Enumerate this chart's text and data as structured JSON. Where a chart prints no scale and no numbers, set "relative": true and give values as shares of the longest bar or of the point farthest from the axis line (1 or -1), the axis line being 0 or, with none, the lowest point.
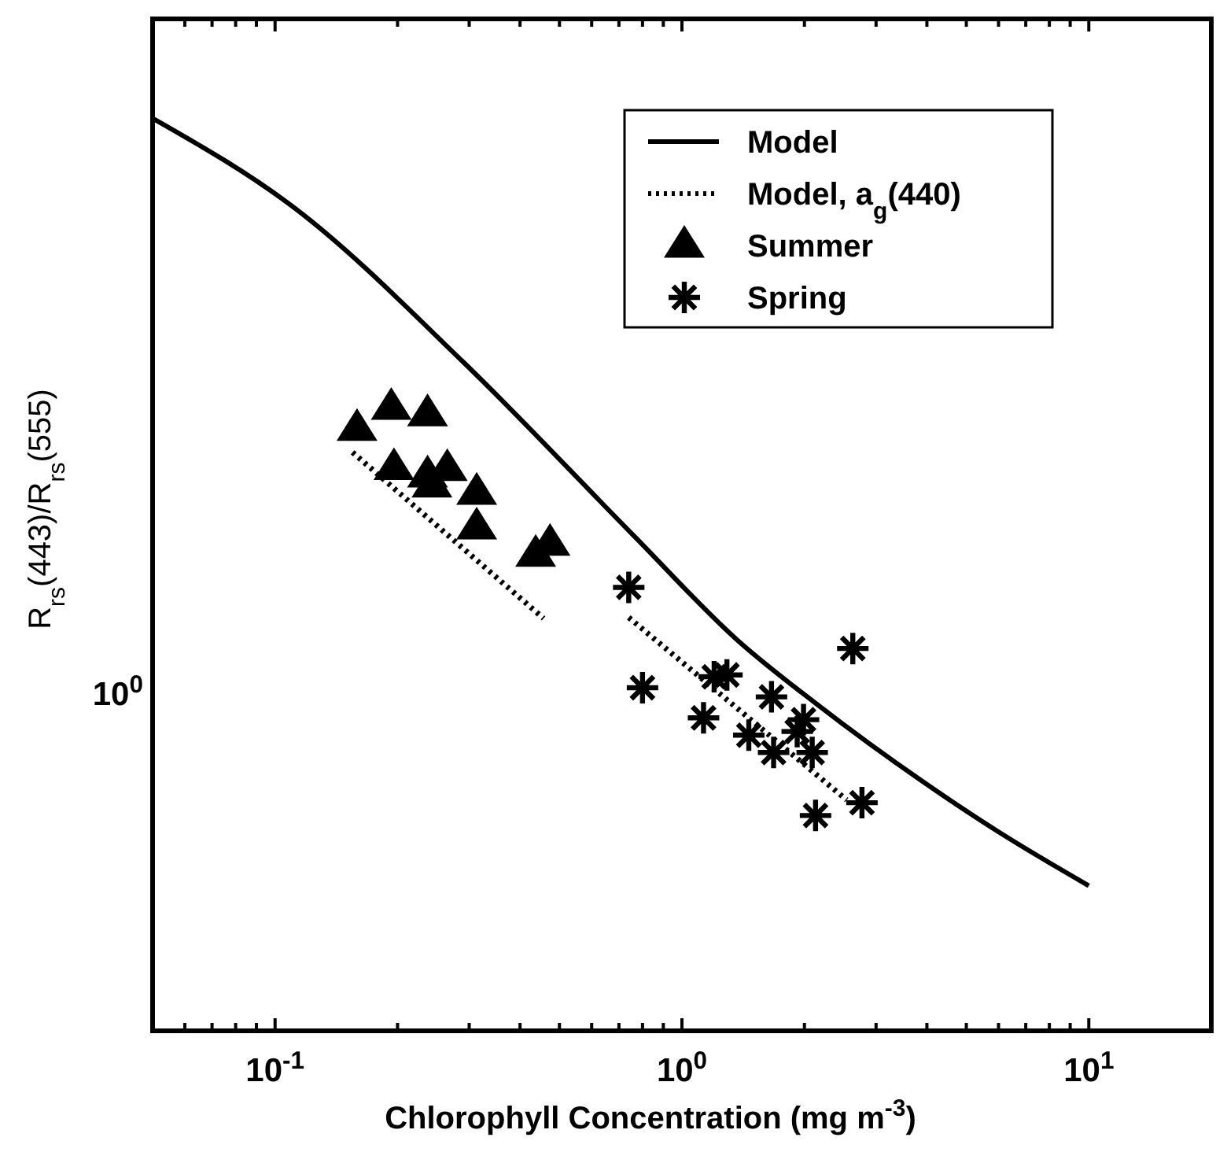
{
  "chart_data": {
    "type": "line",
    "relative": true,
    "log": "x",
    "xlabel": "Chlorophyll Concentration (mg m$^{-3}$)",
    "ylabel": "R$_{rs}$(443)/R$_{rs}$(555)",
    "xlim": [
      0.05,
      20
    ],
    "xticks": [
      {
        "value": 0.06,
        "label": null
      },
      {
        "value": 0.07,
        "label": null
      },
      {
        "value": 0.08,
        "label": null
      },
      {
        "value": 0.09,
        "label": null
      },
      {
        "value": 0.1,
        "label": "10$^{-1}$"
      },
      {
        "value": 0.2,
        "label": null
      },
      {
        "value": 0.3,
        "label": null
      },
      {
        "value": 0.4,
        "label": null
      },
      {
        "value": 0.5,
        "label": null
      },
      {
        "value": 0.6,
        "label": null
      },
      {
        "value": 0.7,
        "label": null
      },
      {
        "value": 0.8,
        "label": null
      },
      {
        "value": 0.9,
        "label": null
      },
      {
        "value": 1,
        "label": "10$^{0}$"
      },
      {
        "value": 2,
        "label": null
      },
      {
        "value": 3,
        "label": null
      },
      {
        "value": 4,
        "label": null
      },
      {
        "value": 5,
        "label": null
      },
      {
        "value": 6,
        "label": null
      },
      {
        "value": 7,
        "label": null
      },
      {
        "value": 8,
        "label": null
      },
      {
        "value": 9,
        "label": null
      },
      {
        "value": 10,
        "label": "10$^{1}$"
      }
    ],
    "annotations": [
      "10$^{0}$"
    ],
    "legend": "top right",
    "grid": false,
    "series": [
      {
        "name": "Model",
        "type": "line",
        "color": "#000000",
        "line_style": "solid",
        "marker": "none",
        "x": [
          0.05,
          0.113,
          0.29,
          0.76,
          1.37,
          2.13,
          3.94,
          6.1,
          10
        ],
        "values": [
          1,
          0.9,
          0.733,
          0.543,
          0.428,
          0.359,
          0.272,
          0.216,
          0.159
        ]
      },
      {
        "name": "Model, a$_{g}$(440)",
        "type": "line",
        "color": "#000000",
        "line_style": "dotted",
        "marker": "none",
        "x": [
          0.155,
          0.457
        ],
        "values": [
          0.634,
          0.452
        ]
      },
      {
        "type": "line",
        "color": "#000000",
        "line_style": "dotted",
        "marker": "none",
        "x": [
          0.74,
          2.54
        ],
        "values": [
          0.453,
          0.253
        ]
      },
      {
        "name": "Summer",
        "type": "scatter",
        "color": "#000000",
        "marker": "triangle",
        "x": [
          0.159,
          0.193,
          0.237,
          0.196,
          0.237,
          0.265,
          0.243,
          0.313,
          0.313,
          0.437,
          0.474
        ],
        "values": [
          0.66,
          0.683,
          0.676,
          0.617,
          0.609,
          0.616,
          0.598,
          0.59,
          0.552,
          0.522,
          0.534
        ]
      },
      {
        "name": "Spring",
        "type": "scatter",
        "color": "#000000",
        "marker": "cross",
        "x": [
          0.74,
          2.63,
          0.8,
          1.2,
          1.29,
          1.66,
          1.13,
          1.46,
          1.99,
          1.92,
          1.68,
          2.09,
          2.77,
          2.13
        ],
        "values": [
          0.486,
          0.419,
          0.376,
          0.388,
          0.39,
          0.366,
          0.343,
          0.324,
          0.341,
          0.328,
          0.305,
          0.305,
          0.25,
          0.236
        ]
      }
    ]
  }
}
